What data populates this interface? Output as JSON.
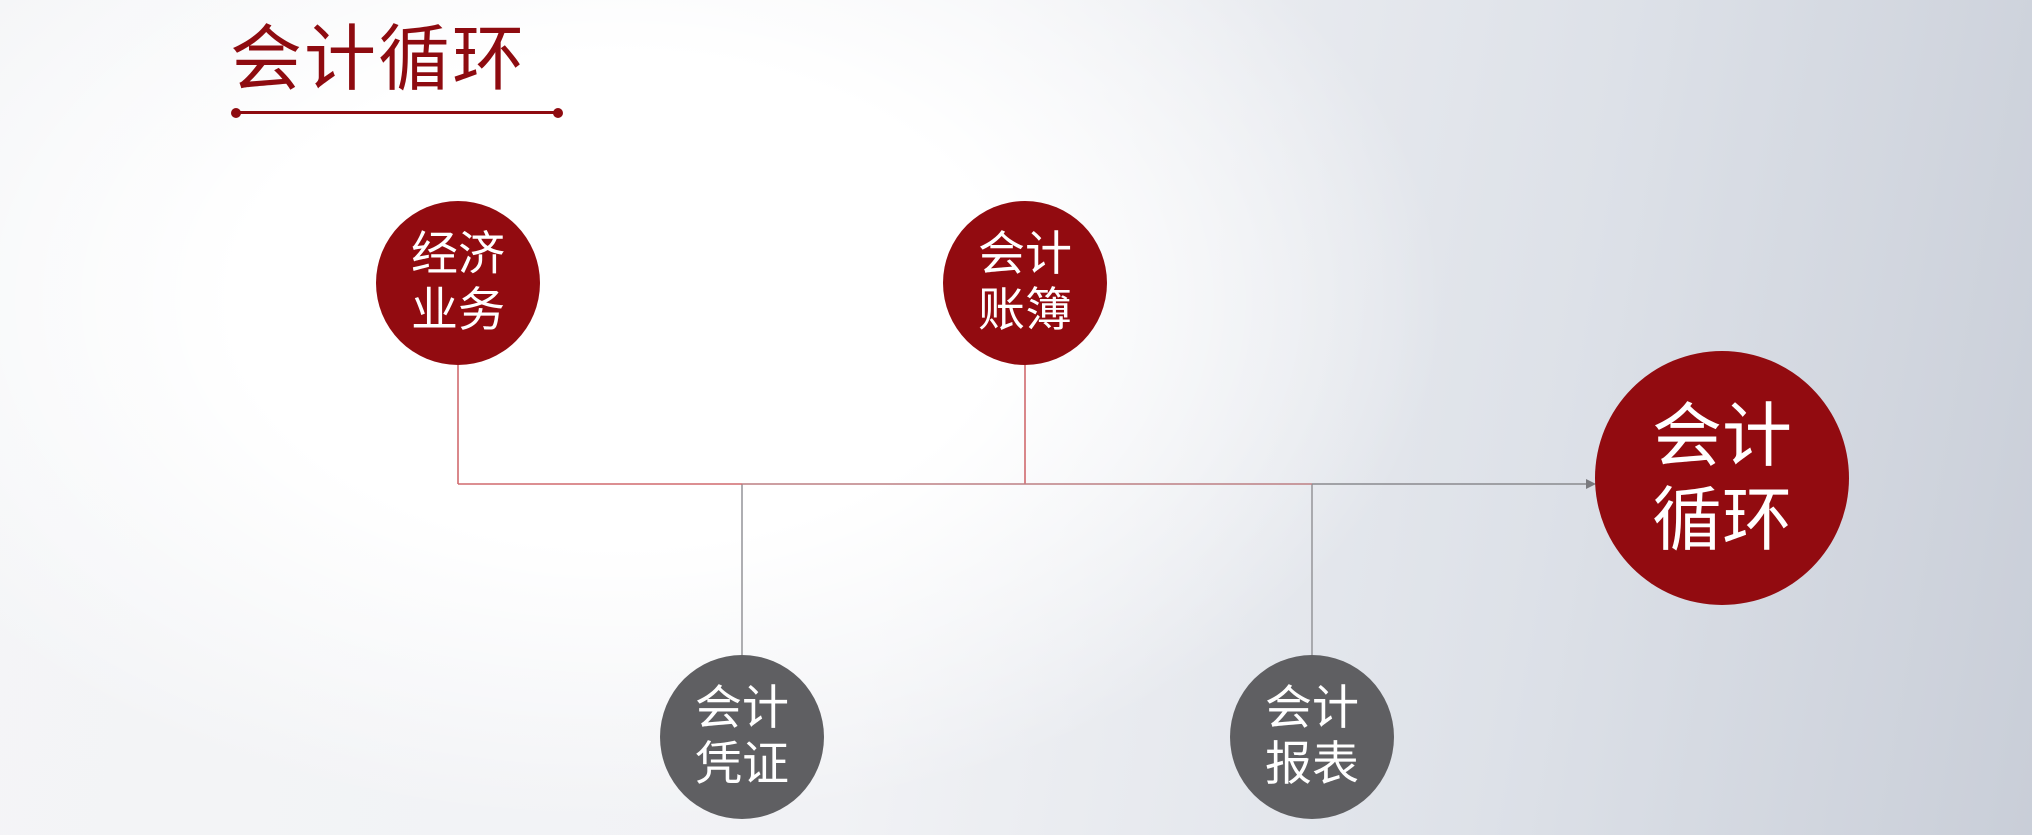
{
  "title": "会计循环",
  "colors": {
    "accent_red": "#920b10",
    "node_gray": "#5f5f62",
    "line_red": "#c9454a",
    "line_gray": "#8a8a8e"
  },
  "nodes": {
    "economic_business": {
      "line1": "经济",
      "line2": "业务"
    },
    "account_books": {
      "line1": "会计",
      "line2": "账簿"
    },
    "vouchers": {
      "line1": "会计",
      "line2": "凭证"
    },
    "reports": {
      "line1": "会计",
      "line2": "报表"
    },
    "accounting_cycle": {
      "line1": "会计",
      "line2": "循环"
    }
  }
}
